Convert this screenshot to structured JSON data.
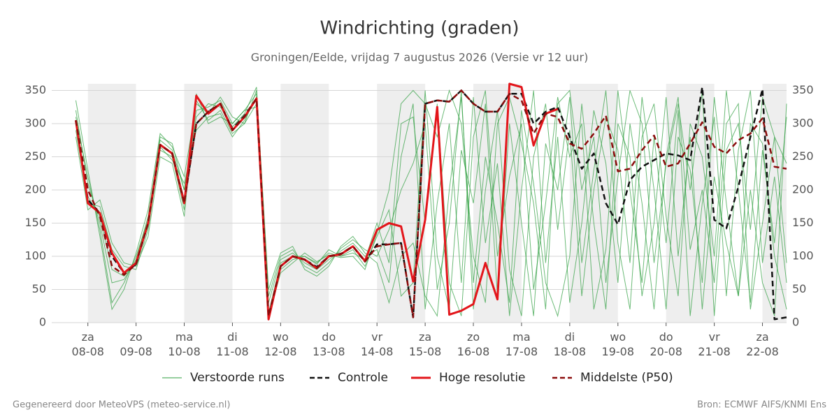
{
  "chart_data": {
    "type": "line",
    "title": "Windrichting (graden)",
    "subtitle": "Groningen/Eelde, vrijdag  7 augustus 2026 (Versie vr 12 uur)",
    "footer_left": "Gegenereerd door MeteoVPS (meteo-service.nl)",
    "footer_right": "Bron: ECMWF AIFS/KNMI Ens",
    "x": [
      -0.25,
      0,
      0.25,
      0.5,
      0.75,
      1,
      1.25,
      1.5,
      1.75,
      2,
      2.25,
      2.5,
      2.75,
      3,
      3.25,
      3.5,
      3.75,
      4,
      4.25,
      4.5,
      4.75,
      5,
      5.25,
      5.5,
      5.75,
      6,
      6.25,
      6.5,
      6.75,
      7,
      7.25,
      7.5,
      7.75,
      8,
      8.25,
      8.5,
      8.75,
      9,
      9.25,
      9.5,
      9.75,
      10,
      10.25,
      10.5,
      10.75,
      11,
      11.25,
      11.5,
      11.75,
      12,
      12.25,
      12.5,
      12.75,
      13,
      13.25,
      13.5,
      13.75,
      14,
      14.25,
      14.5
    ],
    "xlim": [
      -0.75,
      14.5
    ],
    "xticks": [
      {
        "value": 0,
        "label": "za 08-08"
      },
      {
        "value": 1,
        "label": "zo 09-08"
      },
      {
        "value": 2,
        "label": "ma 10-08"
      },
      {
        "value": 3,
        "label": "di 11-08"
      },
      {
        "value": 4,
        "label": "wo 12-08"
      },
      {
        "value": 5,
        "label": "do 13-08"
      },
      {
        "value": 6,
        "label": "vr 14-08"
      },
      {
        "value": 7,
        "label": "za 15-08"
      },
      {
        "value": 8,
        "label": "zo 16-08"
      },
      {
        "value": 9,
        "label": "ma 17-08"
      },
      {
        "value": 10,
        "label": "di 18-08"
      },
      {
        "value": 11,
        "label": "wo 19-08"
      },
      {
        "value": 12,
        "label": "do 20-08"
      },
      {
        "value": 13,
        "label": "vr 21-08"
      },
      {
        "value": 14,
        "label": "za 22-08"
      }
    ],
    "ylim": [
      0,
      360
    ],
    "yticks": [
      0,
      50,
      100,
      150,
      200,
      250,
      300,
      350
    ],
    "grid": true,
    "ensemble": {
      "name": "Verstoorde runs",
      "color": "#2e9e3e",
      "runs": [
        [
          320,
          210,
          150,
          60,
          65,
          95,
          160,
          275,
          260,
          200,
          320,
          325,
          335,
          300,
          320,
          345,
          30,
          95,
          105,
          90,
          80,
          95,
          108,
          120,
          100,
          110,
          60,
          250,
          330,
          20,
          180,
          300,
          60,
          340,
          120,
          240,
          10,
          200,
          350,
          90,
          280,
          30,
          150,
          320,
          240,
          60,
          300,
          180,
          20,
          250,
          340,
          110,
          200,
          60,
          300,
          330,
          20,
          150,
          280,
          90
        ],
        [
          290,
          180,
          175,
          110,
          85,
          80,
          140,
          260,
          250,
          170,
          335,
          305,
          320,
          285,
          300,
          330,
          5,
          80,
          95,
          100,
          90,
          105,
          100,
          110,
          85,
          130,
          170,
          40,
          60,
          350,
          100,
          20,
          260,
          180,
          330,
          40,
          300,
          150,
          10,
          270,
          200,
          340,
          90,
          230,
          350,
          120,
          20,
          280,
          330,
          160,
          40,
          300,
          250,
          100,
          350,
          200,
          30,
          260,
          120,
          310
        ],
        [
          310,
          220,
          140,
          30,
          60,
          100,
          155,
          280,
          270,
          200,
          310,
          330,
          325,
          295,
          315,
          355,
          40,
          100,
          110,
          85,
          75,
          90,
          112,
          125,
          110,
          100,
          140,
          200,
          240,
          300,
          50,
          150,
          350,
          20,
          200,
          320,
          80,
          10,
          250,
          330,
          140,
          290,
          40,
          200,
          310,
          260,
          90,
          340,
          200,
          20,
          280,
          230,
          60,
          340,
          180,
          40,
          300,
          270,
          100,
          20
        ],
        [
          300,
          190,
          160,
          80,
          70,
          90,
          145,
          265,
          245,
          210,
          290,
          310,
          315,
          280,
          305,
          340,
          15,
          90,
          100,
          100,
          88,
          110,
          100,
          105,
          95,
          150,
          90,
          300,
          310,
          150,
          330,
          60,
          10,
          280,
          350,
          100,
          220,
          300,
          50,
          180,
          340,
          250,
          300,
          20,
          110,
          350,
          200,
          60,
          280,
          120,
          320,
          10,
          180,
          310,
          40,
          260,
          350,
          90,
          220,
          60
        ],
        [
          280,
          170,
          185,
          120,
          90,
          85,
          130,
          250,
          240,
          160,
          345,
          300,
          310,
          300,
          320,
          325,
          8,
          75,
          90,
          105,
          92,
          102,
          98,
          100,
          80,
          135,
          200,
          330,
          350,
          330,
          280,
          350,
          300,
          100,
          30,
          300,
          340,
          270,
          180,
          20,
          330,
          350,
          200,
          280,
          60,
          220,
          350,
          300,
          90,
          240,
          330,
          200,
          350,
          10,
          260,
          300,
          140,
          340,
          280,
          240
        ],
        [
          335,
          230,
          130,
          20,
          50,
          105,
          170,
          285,
          265,
          220,
          330,
          315,
          340,
          310,
          300,
          350,
          50,
          105,
          115,
          80,
          70,
          85,
          115,
          130,
          105,
          90,
          30,
          100,
          120,
          40,
          10,
          200,
          340,
          60,
          250,
          150,
          30,
          320,
          210,
          60,
          10,
          100,
          330,
          150,
          20,
          300,
          250,
          40,
          150,
          340,
          100,
          280,
          20,
          220,
          120,
          40,
          200,
          60,
          10,
          330
        ]
      ]
    },
    "series": [
      {
        "name": "Controle",
        "color": "#111111",
        "dash": true,
        "values": [
          305,
          185,
          165,
          100,
          75,
          88,
          150,
          268,
          255,
          182,
          300,
          318,
          330,
          292,
          312,
          338,
          8,
          85,
          100,
          95,
          84,
          100,
          104,
          115,
          92,
          118,
          118,
          120,
          8,
          330,
          335,
          333,
          350,
          330,
          318,
          318,
          345,
          345,
          300,
          318,
          325,
          280,
          232,
          255,
          180,
          148,
          215,
          235,
          245,
          255,
          252,
          245,
          355,
          155,
          142,
          205,
          280,
          352,
          5,
          8
        ]
      },
      {
        "name": "Hoge resolutie",
        "color": "#e3161b",
        "dash": false,
        "values": [
          305,
          180,
          165,
          105,
          75,
          90,
          150,
          268,
          255,
          180,
          342,
          315,
          330,
          290,
          310,
          338,
          5,
          85,
          100,
          95,
          82,
          100,
          103,
          115,
          93,
          140,
          150,
          145,
          62,
          155,
          325,
          12,
          18,
          28,
          90,
          35,
          360,
          355,
          267,
          315,
          322,
          null,
          null,
          null,
          null,
          null,
          null,
          null,
          null,
          null,
          null,
          null,
          null,
          null,
          null,
          null,
          null,
          null,
          null,
          null
        ]
      },
      {
        "name": "Middelste (P50)",
        "color": "#8b0c0c",
        "dash": true,
        "values": [
          305,
          200,
          160,
          85,
          72,
          88,
          150,
          268,
          255,
          180,
          300,
          318,
          330,
          290,
          310,
          338,
          10,
          85,
          100,
          95,
          82,
          100,
          103,
          115,
          92,
          115,
          118,
          120,
          8,
          330,
          335,
          333,
          350,
          330,
          318,
          318,
          345,
          335,
          285,
          315,
          310,
          270,
          262,
          285,
          312,
          228,
          232,
          260,
          282,
          235,
          240,
          270,
          302,
          265,
          255,
          275,
          285,
          308,
          235,
          232
        ]
      }
    ]
  }
}
